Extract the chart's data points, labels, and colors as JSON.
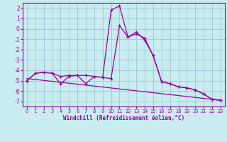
{
  "xlabel": "Windchill (Refroidissement éolien,°C)",
  "background_color": "#c8ecf0",
  "grid_color": "#a0ccd8",
  "line_color": "#990099",
  "x_values": [
    0,
    1,
    2,
    3,
    4,
    5,
    6,
    7,
    8,
    9,
    10,
    11,
    12,
    13,
    14,
    15,
    16,
    17,
    18,
    19,
    20,
    21,
    22,
    23
  ],
  "y_series1": [
    -5.0,
    -4.3,
    -4.2,
    -4.3,
    -5.3,
    -4.6,
    -4.5,
    -5.3,
    -4.6,
    -4.7,
    1.8,
    2.2,
    -0.8,
    -0.5,
    -0.9,
    -2.6,
    -5.1,
    -5.3,
    -5.6,
    -5.7,
    -5.9,
    -6.3,
    -6.8,
    -6.9
  ],
  "y_series2": [
    -5.0,
    -4.3,
    -4.2,
    -4.3,
    -4.6,
    -4.5,
    -4.5,
    -4.5,
    -4.6,
    -4.7,
    -4.8,
    0.3,
    -0.8,
    -0.3,
    -1.1,
    -2.6,
    -5.1,
    -5.3,
    -5.6,
    -5.7,
    -5.9,
    -6.3,
    -6.8,
    -6.9
  ],
  "trend_x": [
    0,
    23
  ],
  "trend_y": [
    -4.8,
    -6.9
  ],
  "ylim": [
    -7.5,
    2.5
  ],
  "yticks": [
    -7,
    -6,
    -5,
    -4,
    -3,
    -2,
    -1,
    0,
    1,
    2
  ],
  "xlim": [
    -0.5,
    23.5
  ],
  "xticks": [
    0,
    1,
    2,
    3,
    4,
    5,
    6,
    7,
    8,
    9,
    10,
    11,
    12,
    13,
    14,
    15,
    16,
    17,
    18,
    19,
    20,
    21,
    22,
    23
  ],
  "xtick_labels": [
    "0",
    "1",
    "2",
    "3",
    "4",
    "5",
    "6",
    "7",
    "8",
    "9",
    "10",
    "11",
    "12",
    "13",
    "14",
    "15",
    "16",
    "17",
    "18",
    "19",
    "20",
    "21",
    "22",
    "23"
  ]
}
